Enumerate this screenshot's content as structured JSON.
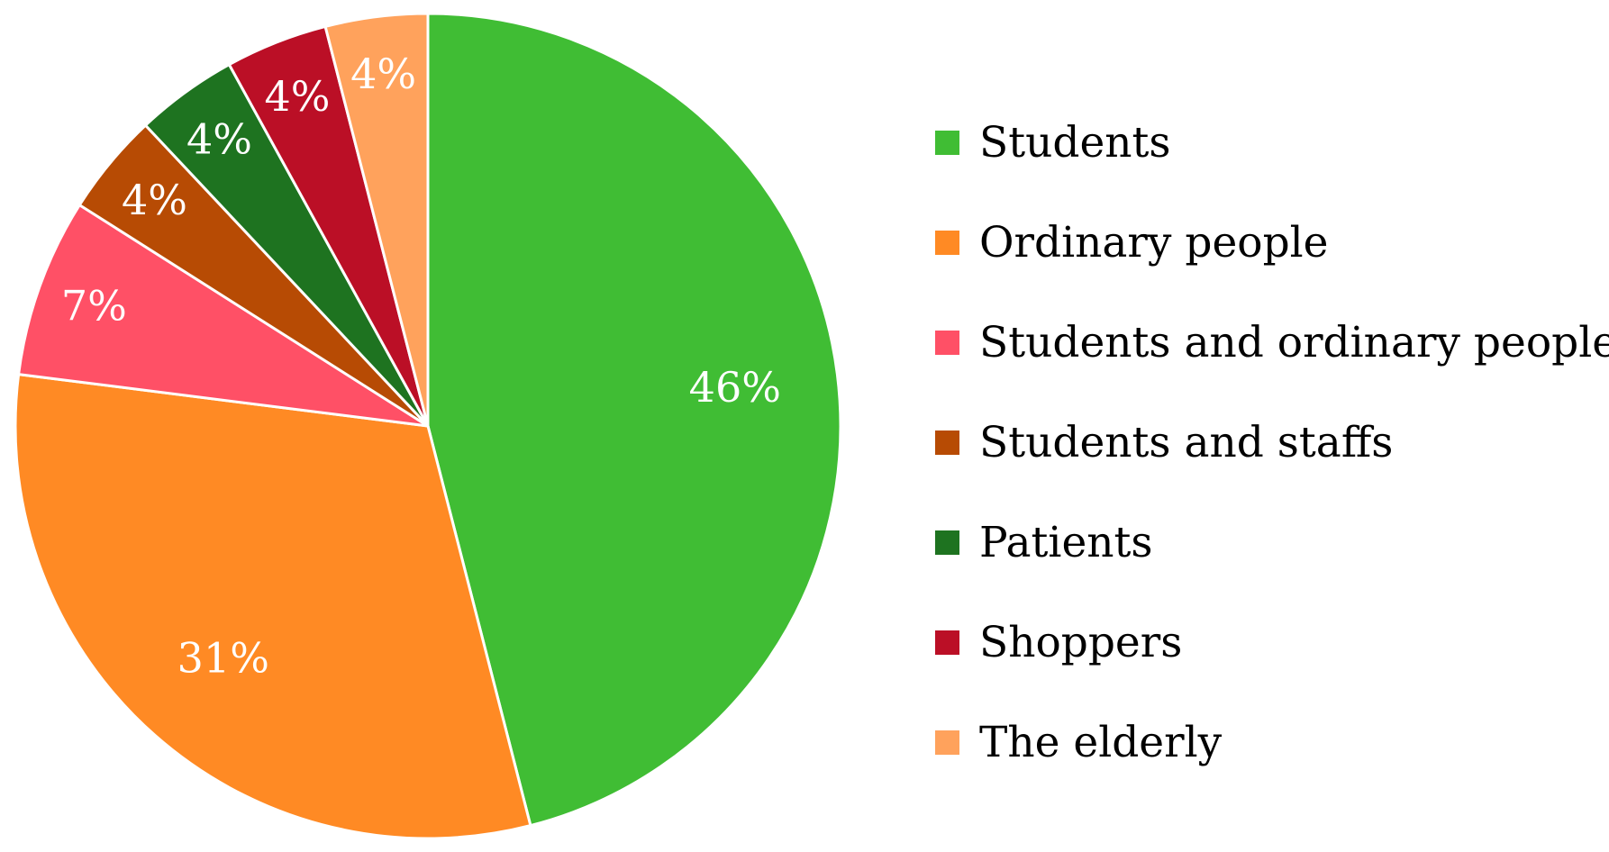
{
  "chart_data": {
    "type": "pie",
    "title": "",
    "legend_position": "right",
    "categories": [
      "Students",
      "Ordinary people",
      "Students and ordinary people",
      "Students and staffs",
      "Patients",
      "Shoppers",
      "The elderly"
    ],
    "values": [
      46,
      31,
      7,
      4,
      4,
      4,
      4
    ],
    "data_labels": [
      "46%",
      "31%",
      "7%",
      "4%",
      "4%",
      "4%",
      "4%"
    ],
    "colors": [
      "#40bd34",
      "#ff8a24",
      "#ff5066",
      "#b74b04",
      "#1e7320",
      "#bb0f26",
      "#ffa25c"
    ],
    "start_angle_deg": 0,
    "direction": "clockwise"
  }
}
